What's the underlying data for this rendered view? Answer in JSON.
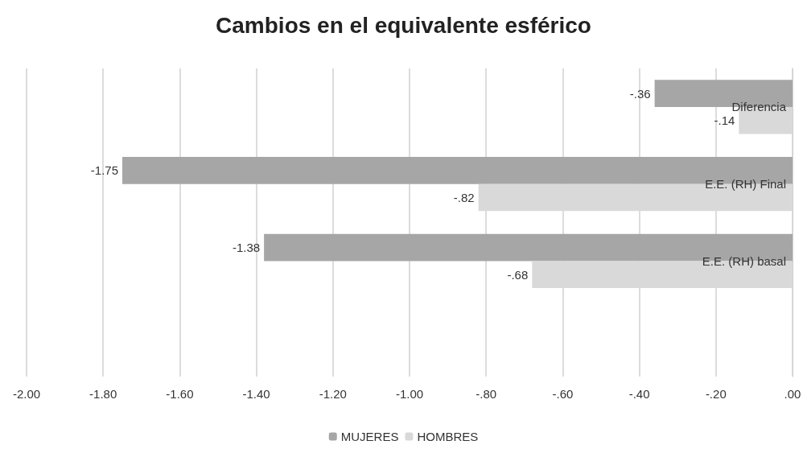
{
  "chart_data": {
    "type": "bar",
    "orientation": "horizontal",
    "title": "Cambios en el equivalente esférico",
    "categories": [
      "Diferencia",
      "E.E. (RH) Final",
      "E.E. (RH) basal",
      null
    ],
    "series": [
      {
        "name": "MUJERES",
        "color": "#a6a6a6",
        "values": [
          -0.36,
          -1.75,
          -1.38,
          null
        ],
        "value_labels": [
          "-.36",
          "-1.75",
          "-1.38",
          null
        ]
      },
      {
        "name": "HOMBRES",
        "color": "#d9d9d9",
        "values": [
          -0.14,
          -0.82,
          -0.68,
          null
        ],
        "value_labels": [
          "-.14",
          "-.82",
          "-.68",
          null
        ]
      }
    ],
    "xlim": [
      -2,
      0
    ],
    "xticks": [
      {
        "value": -2,
        "label": "-2.00"
      },
      {
        "value": -1.8,
        "label": "-1.80"
      },
      {
        "value": -1.6,
        "label": "-1.60"
      },
      {
        "value": -1.4,
        "label": "-1.40"
      },
      {
        "value": -1.2,
        "label": "-1.20"
      },
      {
        "value": -1,
        "label": "-1.00"
      },
      {
        "value": -0.8,
        "label": "-.80"
      },
      {
        "value": -0.6,
        "label": "-.60"
      },
      {
        "value": -0.4,
        "label": "-.40"
      },
      {
        "value": -0.2,
        "label": "-.20"
      },
      {
        "value": 0,
        "label": ".00"
      }
    ],
    "grid": "x",
    "legend": "bottom"
  }
}
